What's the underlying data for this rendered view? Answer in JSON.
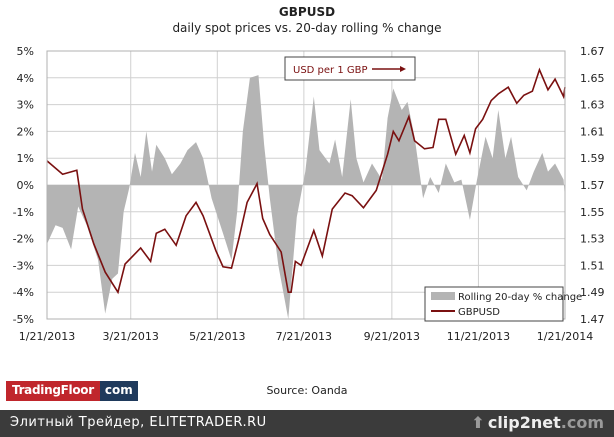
{
  "chart_data": {
    "type": "line",
    "title": "GBPUSD",
    "subtitle": "daily spot prices vs. 20-day rolling % change",
    "x_unit": "days since 1/21/2013",
    "x_ticks": [
      "1/21/2013",
      "3/21/2013",
      "5/21/2013",
      "7/21/2013",
      "9/21/2013",
      "11/21/2013",
      "1/21/2014"
    ],
    "x_tick_days": [
      0,
      59,
      120,
      181,
      243,
      304,
      365
    ],
    "xlim": [
      0,
      365
    ],
    "y_left": {
      "ticks": [
        "5%",
        "4%",
        "3%",
        "2%",
        "1%",
        "0%",
        "-1%",
        "-2%",
        "-3%",
        "-4%",
        "-5%"
      ],
      "lim": [
        -5,
        5
      ]
    },
    "y_right": {
      "ticks": [
        "1.67",
        "1.65",
        "1.63",
        "1.61",
        "1.59",
        "1.57",
        "1.55",
        "1.53",
        "1.51",
        "1.49",
        "1.47"
      ],
      "lim": [
        1.47,
        1.67
      ]
    },
    "grid": true,
    "annotation": "USD per 1 GBP",
    "legend_position": "bottom-right",
    "series": [
      {
        "name": "Rolling 20-day % change",
        "type": "area",
        "axis": "left",
        "color": "#b4b4b4",
        "x": [
          0,
          6,
          11,
          17,
          22,
          28,
          36,
          41,
          46,
          50,
          54,
          58,
          62,
          66,
          70,
          74,
          77,
          83,
          88,
          94,
          99,
          105,
          110,
          116,
          124,
          130,
          134,
          138,
          143,
          149,
          153,
          157,
          163,
          170,
          176,
          182,
          188,
          192,
          199,
          203,
          208,
          214,
          218,
          223,
          229,
          236,
          240,
          244,
          250,
          254,
          259,
          265,
          270,
          276,
          281,
          287,
          292,
          298,
          303,
          309,
          314,
          318,
          323,
          327,
          332,
          338,
          343,
          349,
          353,
          358,
          364,
          365
        ],
        "y": [
          -2.2,
          -1.5,
          -1.6,
          -2.4,
          -0.8,
          -1.5,
          -2.8,
          -4.8,
          -3.5,
          -3.3,
          -1.0,
          -0.1,
          1.2,
          0.3,
          2.0,
          0.5,
          1.5,
          1.0,
          0.4,
          0.8,
          1.3,
          1.6,
          1.0,
          -0.5,
          -1.8,
          -2.8,
          -1.0,
          2.0,
          4.0,
          4.1,
          1.5,
          -0.5,
          -3.0,
          -5.0,
          -1.2,
          0.5,
          3.3,
          1.3,
          0.8,
          1.7,
          0.3,
          3.2,
          1.0,
          0.1,
          0.8,
          0.2,
          2.5,
          3.6,
          2.8,
          3.1,
          1.8,
          -0.5,
          0.3,
          -0.3,
          0.8,
          0.1,
          0.2,
          -1.3,
          0.2,
          1.8,
          1.0,
          2.8,
          1.0,
          1.8,
          0.3,
          -0.2,
          0.5,
          1.2,
          0.5,
          0.8,
          0.2,
          -0.5
        ]
      },
      {
        "name": "GBPUSD",
        "type": "line",
        "axis": "right",
        "color": "#7a1010",
        "x": [
          0,
          11,
          21,
          25,
          33,
          41,
          50,
          55,
          66,
          73,
          77,
          83,
          91,
          98,
          105,
          110,
          119,
          124,
          130,
          135,
          141,
          148,
          152,
          157,
          165,
          170,
          172,
          175,
          179,
          188,
          194,
          201,
          210,
          215,
          223,
          232,
          240,
          244,
          248,
          255,
          259,
          266,
          272,
          276,
          281,
          288,
          294,
          298,
          302,
          307,
          313,
          318,
          325,
          331,
          336,
          342,
          347,
          353,
          358,
          364,
          365
        ],
        "y": [
          1.588,
          1.578,
          1.581,
          1.552,
          1.526,
          1.505,
          1.49,
          1.511,
          1.523,
          1.513,
          1.534,
          1.537,
          1.525,
          1.547,
          1.557,
          1.547,
          1.521,
          1.509,
          1.508,
          1.529,
          1.557,
          1.571,
          1.545,
          1.533,
          1.52,
          1.49,
          1.49,
          1.513,
          1.51,
          1.536,
          1.517,
          1.552,
          1.564,
          1.562,
          1.553,
          1.566,
          1.593,
          1.61,
          1.603,
          1.621,
          1.603,
          1.597,
          1.598,
          1.619,
          1.619,
          1.593,
          1.607,
          1.594,
          1.612,
          1.619,
          1.633,
          1.638,
          1.643,
          1.631,
          1.637,
          1.64,
          1.656,
          1.641,
          1.649,
          1.636,
          1.643
        ]
      }
    ]
  },
  "footer": {
    "logo_left": "TradingFloor",
    "logo_right": "com",
    "source": "Source: Oanda",
    "watermark": "Элитный Трейдер, ELITETRADER.RU",
    "clip_brand": "clip2net",
    "clip_suffix": ".com"
  }
}
